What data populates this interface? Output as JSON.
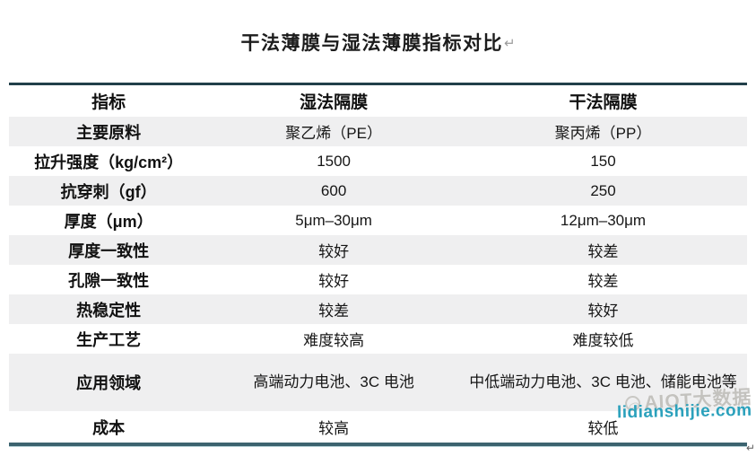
{
  "title": "干法薄膜与湿法薄膜指标对比",
  "return_mark": "↵",
  "table": {
    "headers": [
      "指标",
      "湿法隔膜",
      "干法隔膜"
    ],
    "rows": [
      {
        "label": "主要原料",
        "wet": "聚乙烯（PE）",
        "dry": "聚丙烯（PP）"
      },
      {
        "label": "拉升强度（kg/cm²）",
        "wet": "1500",
        "dry": "150"
      },
      {
        "label": "抗穿刺（gf）",
        "wet": "600",
        "dry": "250"
      },
      {
        "label": "厚度（μm）",
        "wet": "5μm–30μm",
        "dry": "12μm–30μm"
      },
      {
        "label": "厚度一致性",
        "wet": "较好",
        "dry": "较差"
      },
      {
        "label": "孔隙一致性",
        "wet": "较好",
        "dry": "较差"
      },
      {
        "label": "热稳定性",
        "wet": "较差",
        "dry": "较好"
      },
      {
        "label": "生产工艺",
        "wet": "难度较高",
        "dry": "难度较低"
      },
      {
        "label": "应用领域",
        "wet": "高端动力电池、3C 电池",
        "dry": "中低端动力电池、3C 电池、储能电池等"
      },
      {
        "label": "成本",
        "wet": "较高",
        "dry": "较低"
      }
    ]
  },
  "watermark": {
    "brand": "AIOT大数据",
    "site": "lidianshijie.com",
    "site_color": "#2ba1bc"
  },
  "colors": {
    "row_alt_background": "#efeff0",
    "table_border_top": "#22404a",
    "table_border_bottom": "#3c636f"
  }
}
